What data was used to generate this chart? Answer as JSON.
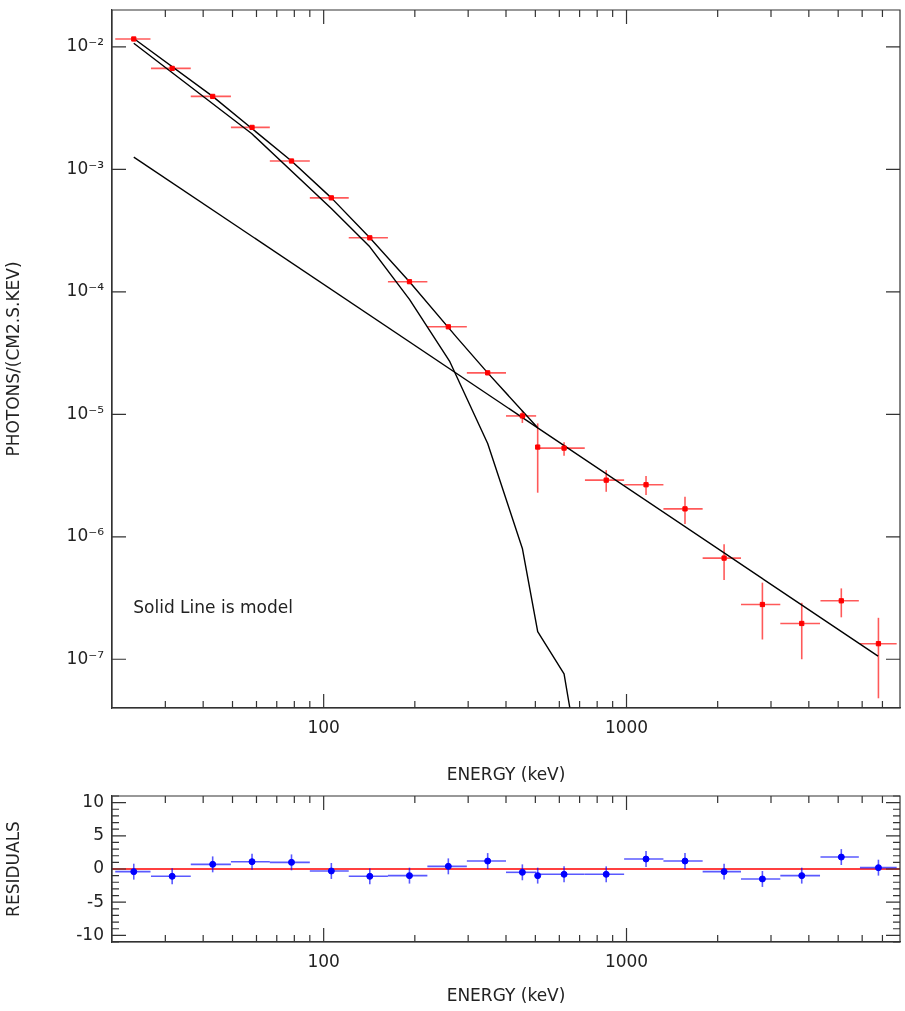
{
  "chart_data": [
    {
      "type": "scatter",
      "xlabel": "ENERGY (keV)",
      "ylabel": "PHOTONS/(CM2.S.KEV)",
      "log": "xy",
      "xlim": [
        20,
        8000
      ],
      "ylim": [
        4e-08,
        0.02
      ],
      "xticks": [
        {
          "value": 30,
          "label": null
        },
        {
          "value": 40,
          "label": null
        },
        {
          "value": 50,
          "label": null
        },
        {
          "value": 60,
          "label": null
        },
        {
          "value": 70,
          "label": null
        },
        {
          "value": 80,
          "label": null
        },
        {
          "value": 90,
          "label": null
        },
        {
          "value": 100,
          "label": "100"
        },
        {
          "value": 200,
          "label": null
        },
        {
          "value": 300,
          "label": null
        },
        {
          "value": 400,
          "label": null
        },
        {
          "value": 500,
          "label": null
        },
        {
          "value": 600,
          "label": null
        },
        {
          "value": 700,
          "label": null
        },
        {
          "value": 800,
          "label": null
        },
        {
          "value": 900,
          "label": null
        },
        {
          "value": 1000,
          "label": "1000"
        },
        {
          "value": 2000,
          "label": null
        },
        {
          "value": 3000,
          "label": null
        },
        {
          "value": 4000,
          "label": null
        },
        {
          "value": 5000,
          "label": null
        },
        {
          "value": 6000,
          "label": null
        },
        {
          "value": 7000,
          "label": null
        }
      ],
      "yticks": [
        {
          "value": 1e-07,
          "label": "10⁻⁷"
        },
        {
          "value": 1e-06,
          "label": "10⁻⁶"
        },
        {
          "value": 1e-05,
          "label": "10⁻⁵"
        },
        {
          "value": 0.0001,
          "label": "10⁻⁴"
        },
        {
          "value": 0.001,
          "label": "10⁻³"
        },
        {
          "value": 0.01,
          "label": "10⁻²"
        }
      ],
      "annotations": [
        "Solid Line is model"
      ],
      "series": [
        {
          "type": "scatter",
          "marker": "square",
          "color": "#ff0000",
          "x": [
            23.6,
            31.6,
            43.0,
            58.0,
            78.3,
            106,
            142,
            192,
            258,
            348,
            453,
            509,
            622,
            857,
            1160,
            1560,
            2100,
            2810,
            3790,
            5120,
            6790
          ],
          "values": [
            0.0116,
            0.00667,
            0.00394,
            0.0022,
            0.00117,
            0.000585,
            0.000276,
            0.000121,
            5.18e-05,
            2.18e-05,
            9.7e-06,
            5.4e-06,
            5.3e-06,
            2.9e-06,
            2.66e-06,
            1.69e-06,
            6.7e-07,
            2.8e-07,
            1.96e-07,
            3e-07,
            1.34e-07
          ],
          "errors": [
            null,
            null,
            null,
            null,
            null,
            null,
            null,
            null,
            null,
            null,
            [
              8.5e-06,
              1.07e-05
            ],
            [
              2.29e-06,
              8.43e-06
            ],
            [
              4.58e-06,
              5.9e-06
            ],
            [
              2.33e-06,
              3.5e-06
            ],
            [
              2.19e-06,
              3.13e-06
            ],
            [
              1.27e-06,
              2.12e-06
            ],
            [
              4.43e-07,
              8.7e-07
            ],
            [
              1.45e-07,
              4.22e-07
            ],
            [
              1e-07,
              2.89e-07
            ],
            [
              2.2e-07,
              3.79e-07
            ],
            [
              4.8e-08,
              2.18e-07
            ]
          ],
          "xerrors": [
            [
              20.5,
              26.8
            ],
            [
              26.9,
              36.4
            ],
            [
              36.4,
              49.4
            ],
            [
              49.4,
              66.4
            ],
            [
              66.4,
              90
            ],
            [
              90,
              121
            ],
            [
              121,
              163
            ],
            [
              163,
              220
            ],
            [
              220,
              297
            ],
            [
              297,
              400
            ],
            [
              400,
              503
            ],
            null,
            [
              509,
              728
            ],
            [
              729,
              982
            ],
            [
              982,
              1324
            ],
            [
              1324,
              1784
            ],
            [
              1784,
              2388
            ],
            [
              2388,
              3220
            ],
            [
              3220,
              4355
            ],
            [
              4370,
              5850
            ],
            [
              5900,
              7800
            ]
          ]
        },
        {
          "type": "line",
          "marker": "none",
          "color": "#000000",
          "x": [
            23.6,
            43.0,
            78.3,
            106,
            142,
            192,
            275,
            348,
            509,
            6770
          ],
          "values": [
            0.0117,
            0.00394,
            0.00117,
            0.000585,
            0.000276,
            0.000121,
            4.25e-05,
            2.18e-05,
            7.76e-06,
            1.06e-07
          ]
        },
        {
          "type": "line",
          "marker": "none",
          "color": "#000000",
          "x": [
            23.6,
            57.8,
            106,
            142,
            192,
            261,
            348,
            453,
            509,
            622,
            650
          ],
          "values": [
            0.0107,
            0.00196,
            0.00048,
            0.000233,
            8.67e-05,
            2.69e-05,
            5.78e-06,
            8.03e-07,
            1.68e-07,
            7.59e-08,
            4e-08
          ]
        },
        {
          "type": "line",
          "marker": "none",
          "color": "#000000",
          "x": [
            23.6,
            509
          ],
          "values": [
            0.00126,
            7.76e-06
          ]
        }
      ]
    },
    {
      "type": "scatter",
      "xlabel": "ENERGY (keV)",
      "ylabel": "RESIDUALS",
      "log": "x",
      "xlim": [
        20,
        8000
      ],
      "ylim": [
        -11,
        11
      ],
      "marker": "circle",
      "xticks": [
        {
          "value": 30,
          "label": null
        },
        {
          "value": 40,
          "label": null
        },
        {
          "value": 50,
          "label": null
        },
        {
          "value": 60,
          "label": null
        },
        {
          "value": 70,
          "label": null
        },
        {
          "value": 80,
          "label": null
        },
        {
          "value": 90,
          "label": null
        },
        {
          "value": 100,
          "label": "100"
        },
        {
          "value": 200,
          "label": null
        },
        {
          "value": 300,
          "label": null
        },
        {
          "value": 400,
          "label": null
        },
        {
          "value": 500,
          "label": null
        },
        {
          "value": 600,
          "label": null
        },
        {
          "value": 700,
          "label": null
        },
        {
          "value": 800,
          "label": null
        },
        {
          "value": 900,
          "label": null
        },
        {
          "value": 1000,
          "label": "1000"
        },
        {
          "value": 2000,
          "label": null
        },
        {
          "value": 3000,
          "label": null
        },
        {
          "value": 4000,
          "label": null
        },
        {
          "value": 5000,
          "label": null
        },
        {
          "value": 6000,
          "label": null
        },
        {
          "value": 7000,
          "label": null
        }
      ],
      "yticks": [
        {
          "value": -11,
          "label": null
        },
        -10,
        {
          "value": -9,
          "label": null
        },
        {
          "value": -8,
          "label": null
        },
        {
          "value": -7,
          "label": null
        },
        {
          "value": -6,
          "label": null
        },
        -5,
        {
          "value": -4,
          "label": null
        },
        {
          "value": -3,
          "label": null
        },
        {
          "value": -2,
          "label": null
        },
        {
          "value": -1,
          "label": null
        },
        0,
        {
          "value": 1,
          "label": null
        },
        {
          "value": 2,
          "label": null
        },
        {
          "value": 3,
          "label": null
        },
        {
          "value": 4,
          "label": null
        },
        5,
        {
          "value": 6,
          "label": null
        },
        {
          "value": 7,
          "label": null
        },
        {
          "value": 8,
          "label": null
        },
        {
          "value": 9,
          "label": null
        },
        10,
        {
          "value": 11,
          "label": null
        }
      ],
      "ref_lines": [
        {
          "axis": "y",
          "value": 0,
          "color": "#ff0000"
        }
      ],
      "series": [
        {
          "color": "#0000ff",
          "x": [
            23.6,
            31.6,
            43.0,
            58.0,
            78.3,
            106,
            142,
            192,
            258,
            348,
            453,
            509,
            622,
            857,
            1160,
            1560,
            2100,
            2810,
            3790,
            5120,
            6790
          ],
          "values": [
            -0.4,
            -1.1,
            0.7,
            1.1,
            1.0,
            -0.3,
            -1.1,
            -1.0,
            0.4,
            1.2,
            -0.5,
            -1.0,
            -0.8,
            -0.8,
            1.5,
            1.2,
            -0.4,
            -1.5,
            -1.0,
            1.8,
            0.2
          ],
          "errors": [
            1.2,
            1.2,
            1.2,
            1.2,
            1.2,
            1.2,
            1.2,
            1.2,
            1.2,
            1.2,
            1.2,
            1.2,
            1.2,
            1.2,
            1.2,
            1.2,
            1.2,
            1.2,
            1.2,
            1.2,
            1.2
          ],
          "xerrors": [
            [
              20.5,
              26.8
            ],
            [
              26.9,
              36.4
            ],
            [
              36.4,
              49.4
            ],
            [
              49.4,
              66.4
            ],
            [
              66.4,
              90
            ],
            [
              90,
              121
            ],
            [
              121,
              163
            ],
            [
              163,
              220
            ],
            [
              220,
              297
            ],
            [
              297,
              400
            ],
            [
              400,
              503
            ],
            null,
            [
              509,
              728
            ],
            [
              729,
              982
            ],
            [
              982,
              1324
            ],
            [
              1324,
              1784
            ],
            [
              1784,
              2388
            ],
            [
              2388,
              3220
            ],
            [
              3220,
              4355
            ],
            [
              4370,
              5850
            ],
            [
              5900,
              7800
            ]
          ]
        }
      ]
    }
  ]
}
